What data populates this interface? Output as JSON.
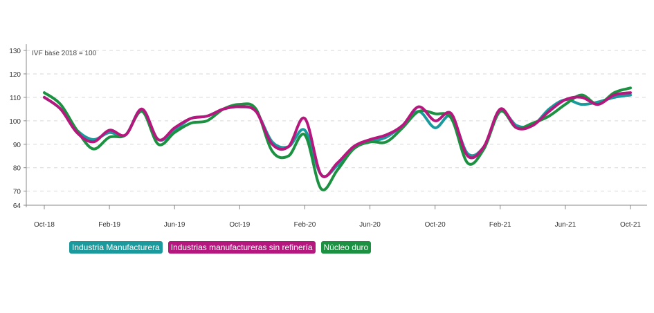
{
  "chart_data": {
    "type": "line",
    "annotation": "IVF base 2018 = 100",
    "y_ticks": [
      "64",
      "70",
      "80",
      "90",
      "100",
      "110",
      "120",
      "130"
    ],
    "ylim": [
      64,
      130
    ],
    "x_tick_labels": [
      "Oct-18",
      "Feb-19",
      "Jun-19",
      "Oct-19",
      "Feb-20",
      "Jun-20",
      "Oct-20",
      "Feb-21",
      "Jun-21",
      "Oct-21"
    ],
    "x_start": "2018-10",
    "x": [
      "2018-10",
      "2018-11",
      "2018-12",
      "2019-01",
      "2019-02",
      "2019-03",
      "2019-04",
      "2019-05",
      "2019-06",
      "2019-07",
      "2019-08",
      "2019-09",
      "2019-10",
      "2019-11",
      "2019-12",
      "2020-01",
      "2020-02",
      "2020-03",
      "2020-04",
      "2020-05",
      "2020-06",
      "2020-07",
      "2020-08",
      "2020-09",
      "2020-10",
      "2020-11",
      "2020-12",
      "2021-01",
      "2021-02",
      "2021-03",
      "2021-04",
      "2021-05",
      "2021-06",
      "2021-07",
      "2021-08",
      "2021-09",
      "2021-10"
    ],
    "grid": true,
    "legend_position": "bottom-left",
    "series": [
      {
        "name": "Industria Manufacturera",
        "color": "#1a9a9c",
        "values": [
          110,
          105,
          96,
          92,
          95,
          94,
          105,
          92,
          96,
          101,
          102,
          105,
          106,
          104,
          91,
          89,
          96,
          77,
          81,
          89,
          91,
          93,
          98,
          104,
          97,
          102,
          86,
          89,
          104,
          98,
          98,
          105,
          109,
          107,
          108,
          110,
          111
        ]
      },
      {
        "name": "Industrias manufactureras sin refinería",
        "color": "#b5177f",
        "values": [
          110,
          105,
          95,
          91,
          96,
          94,
          105,
          92,
          97,
          101,
          102,
          105,
          106,
          104,
          90,
          89,
          101,
          77,
          82,
          89,
          92,
          94,
          98,
          106,
          100,
          103,
          85,
          89,
          105,
          97,
          98,
          104,
          109,
          110,
          107,
          111,
          112
        ]
      },
      {
        "name": "Núcleo duro",
        "color": "#1c9141",
        "values": [
          112,
          107,
          96,
          88,
          93,
          94,
          104,
          90,
          95,
          99,
          100,
          105,
          107,
          105,
          87,
          85,
          94,
          71,
          79,
          88,
          91,
          91,
          97,
          104,
          103,
          101,
          82,
          88,
          104,
          97,
          99,
          102,
          107,
          111,
          107,
          112,
          114
        ]
      }
    ]
  }
}
